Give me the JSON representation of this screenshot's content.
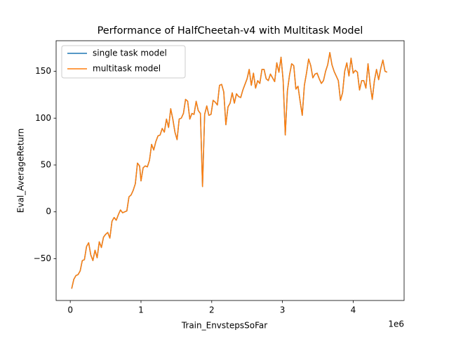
{
  "chart_data": {
    "type": "line",
    "title": "Performance of HalfCheetah-v4 with Multitask Model",
    "xlabel": "Train_EnvstepsSoFar",
    "ylabel": "Eval_AverageReturn",
    "x_offset_label": "1e6",
    "x": [
      0.02,
      0.05,
      0.08,
      0.11,
      0.14,
      0.17,
      0.2,
      0.23,
      0.26,
      0.29,
      0.32,
      0.35,
      0.38,
      0.41,
      0.44,
      0.47,
      0.5,
      0.53,
      0.56,
      0.59,
      0.62,
      0.65,
      0.68,
      0.71,
      0.74,
      0.77,
      0.8,
      0.83,
      0.86,
      0.89,
      0.92,
      0.95,
      0.98,
      1.0,
      1.03,
      1.06,
      1.09,
      1.12,
      1.15,
      1.18,
      1.21,
      1.24,
      1.27,
      1.3,
      1.33,
      1.36,
      1.39,
      1.42,
      1.45,
      1.48,
      1.51,
      1.54,
      1.57,
      1.6,
      1.63,
      1.66,
      1.69,
      1.72,
      1.75,
      1.78,
      1.81,
      1.84,
      1.87,
      1.9,
      1.93,
      1.96,
      1.99,
      2.02,
      2.05,
      2.08,
      2.11,
      2.14,
      2.17,
      2.2,
      2.23,
      2.26,
      2.29,
      2.32,
      2.35,
      2.38,
      2.41,
      2.44,
      2.47,
      2.5,
      2.53,
      2.56,
      2.59,
      2.62,
      2.65,
      2.68,
      2.71,
      2.74,
      2.77,
      2.8,
      2.83,
      2.86,
      2.89,
      2.92,
      2.95,
      2.98,
      3.01,
      3.04,
      3.07,
      3.1,
      3.13,
      3.16,
      3.19,
      3.22,
      3.25,
      3.28,
      3.31,
      3.34,
      3.37,
      3.4,
      3.43,
      3.46,
      3.49,
      3.52,
      3.55,
      3.58,
      3.61,
      3.64,
      3.67,
      3.7,
      3.73,
      3.76,
      3.79,
      3.82,
      3.85,
      3.88,
      3.91,
      3.94,
      3.97,
      4.0,
      4.03,
      4.06,
      4.09,
      4.12,
      4.15,
      4.18,
      4.21,
      4.24,
      4.27,
      4.3,
      4.33,
      4.36,
      4.39,
      4.42,
      4.45,
      4.48
    ],
    "series": [
      {
        "name": "single task model",
        "color": "#1f77b4",
        "values": [
          -82,
          -72,
          -68,
          -67,
          -63,
          -52,
          -51,
          -37,
          -33,
          -46,
          -52,
          -41,
          -49,
          -32,
          -38,
          -27,
          -24,
          -22,
          -28,
          -10,
          -6,
          -9,
          -3,
          2,
          -1,
          0,
          1,
          16,
          18,
          23,
          30,
          52,
          49,
          33,
          47,
          49,
          48,
          55,
          72,
          66,
          75,
          81,
          82,
          89,
          85,
          99,
          90,
          110,
          99,
          85,
          77,
          99,
          100,
          105,
          120,
          118,
          99,
          105,
          104,
          118,
          108,
          105,
          27,
          104,
          113,
          103,
          104,
          119,
          117,
          114,
          135,
          136,
          128,
          93,
          112,
          116,
          127,
          116,
          126,
          123,
          122,
          130,
          136,
          142,
          152,
          135,
          148,
          132,
          140,
          137,
          152,
          152,
          142,
          140,
          147,
          143,
          139,
          159,
          149,
          165,
          140,
          82,
          129,
          146,
          158,
          156,
          131,
          134,
          118,
          103,
          135,
          148,
          163,
          156,
          143,
          147,
          148,
          142,
          137,
          140,
          150,
          157,
          170,
          157,
          150,
          145,
          140,
          119,
          127,
          150,
          159,
          145,
          164,
          148,
          151,
          149,
          130,
          140,
          140,
          132,
          158,
          136,
          120,
          140,
          152,
          141,
          153,
          162,
          150,
          149
        ]
      },
      {
        "name": "multitask model",
        "color": "#ff7f0e",
        "values": [
          -82,
          -72,
          -68,
          -67,
          -63,
          -52,
          -51,
          -37,
          -33,
          -46,
          -52,
          -41,
          -49,
          -32,
          -38,
          -27,
          -24,
          -22,
          -28,
          -10,
          -6,
          -9,
          -3,
          2,
          -1,
          0,
          1,
          16,
          18,
          23,
          30,
          52,
          49,
          33,
          47,
          49,
          48,
          55,
          72,
          66,
          75,
          81,
          82,
          89,
          85,
          99,
          90,
          110,
          99,
          85,
          77,
          99,
          100,
          105,
          120,
          118,
          99,
          105,
          104,
          118,
          108,
          105,
          27,
          104,
          113,
          103,
          104,
          119,
          117,
          114,
          135,
          136,
          128,
          93,
          112,
          116,
          127,
          116,
          126,
          123,
          122,
          130,
          136,
          142,
          152,
          135,
          148,
          132,
          140,
          137,
          152,
          152,
          142,
          140,
          147,
          143,
          139,
          159,
          149,
          165,
          140,
          82,
          129,
          146,
          158,
          156,
          131,
          134,
          118,
          103,
          135,
          148,
          163,
          156,
          143,
          147,
          148,
          142,
          137,
          140,
          150,
          157,
          170,
          157,
          150,
          145,
          140,
          119,
          127,
          150,
          159,
          145,
          164,
          148,
          151,
          149,
          130,
          140,
          140,
          132,
          158,
          136,
          120,
          140,
          152,
          141,
          153,
          162,
          150,
          149
        ]
      }
    ],
    "xlim": [
      -0.2,
      4.72
    ],
    "ylim": [
      -94.6,
      182.6
    ],
    "xticks": [
      0,
      1,
      2,
      3,
      4
    ],
    "yticks": [
      {
        "value": -50,
        "label": "−50"
      },
      0,
      50,
      100,
      150
    ],
    "legend": "upper left"
  }
}
